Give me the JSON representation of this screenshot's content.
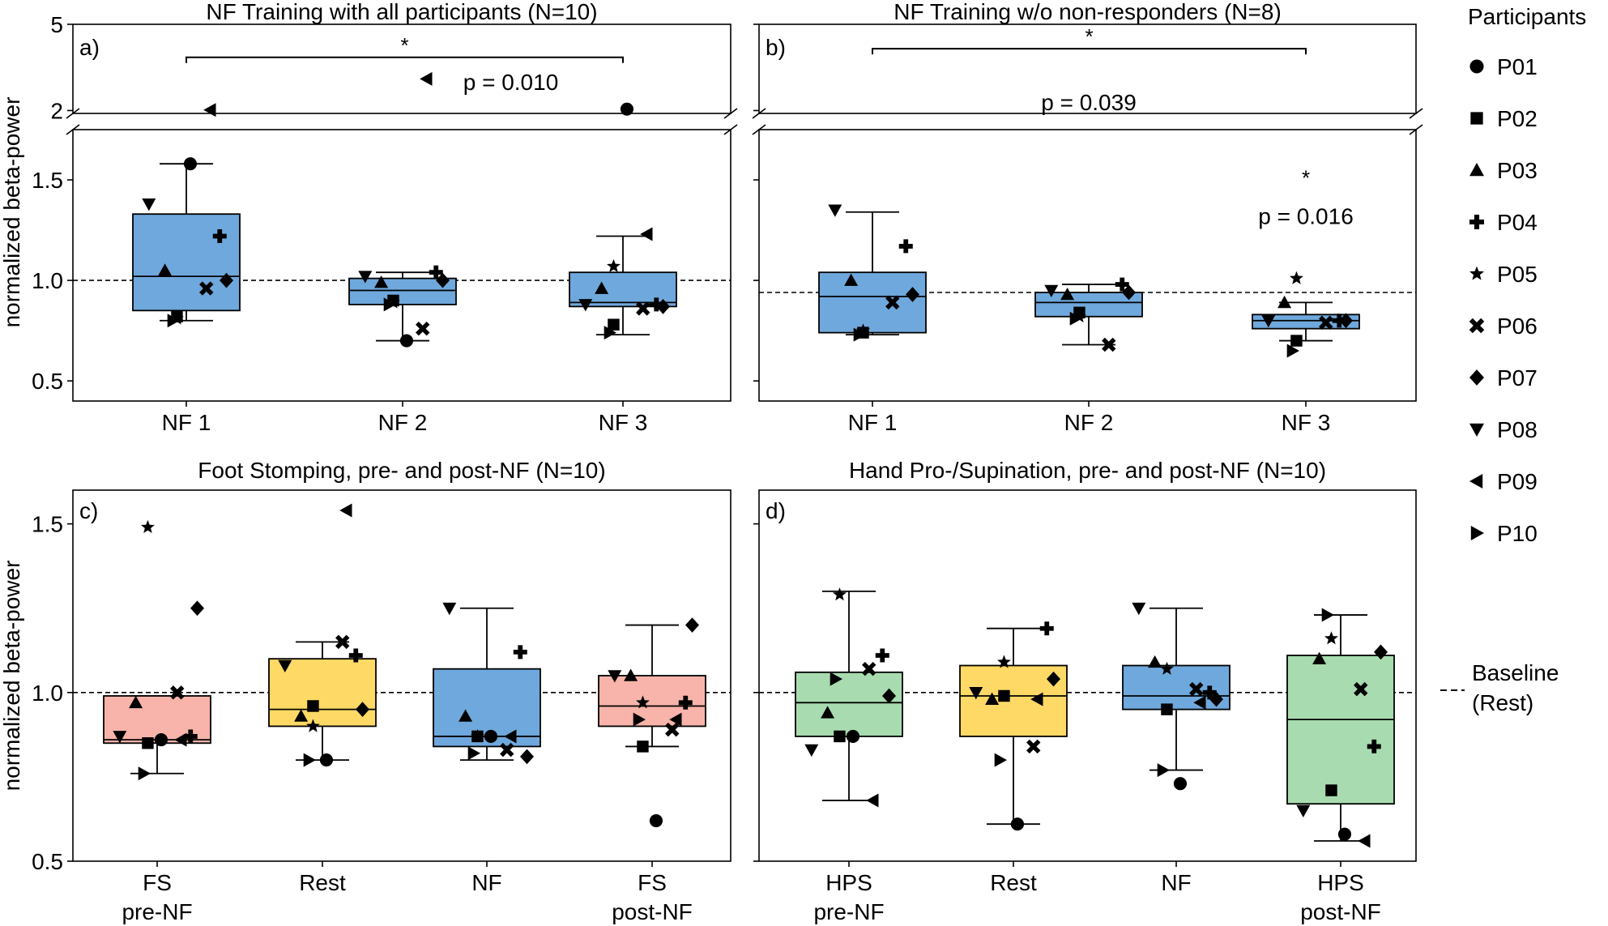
{
  "legend": {
    "title": "Participants",
    "items": [
      {
        "id": "P01",
        "label": "P01",
        "marker": "circle"
      },
      {
        "id": "P02",
        "label": "P02",
        "marker": "square"
      },
      {
        "id": "P03",
        "label": "P03",
        "marker": "triangle-up"
      },
      {
        "id": "P04",
        "label": "P04",
        "marker": "plus"
      },
      {
        "id": "P05",
        "label": "P05",
        "marker": "star"
      },
      {
        "id": "P06",
        "label": "P06",
        "marker": "x"
      },
      {
        "id": "P07",
        "label": "P07",
        "marker": "diamond"
      },
      {
        "id": "P08",
        "label": "P08",
        "marker": "triangle-down"
      },
      {
        "id": "P09",
        "label": "P09",
        "marker": "triangle-left"
      },
      {
        "id": "P10",
        "label": "P10",
        "marker": "triangle-right"
      }
    ],
    "baseline_label_line1": "Baseline",
    "baseline_label_line2": "(Rest)"
  },
  "colors": {
    "blue": "#6fa8dc",
    "red": "#f8b4aa",
    "yellow": "#ffd966",
    "green": "#a8dcb0"
  },
  "chart_data": [
    {
      "id": "a",
      "type": "box",
      "panel_label": "a)",
      "title": "NF Training with all participants (N=10)",
      "ylabel": "normalized beta-power",
      "ylim_lower": [
        0.4,
        1.75
      ],
      "ylim_upper": [
        1.9,
        5
      ],
      "yticks_lower": [
        "0.5",
        "1.0",
        "1.5"
      ],
      "yticks_upper": [
        "2",
        "5"
      ],
      "baseline": 1.0,
      "categories": [
        {
          "label": [
            "NF 1"
          ],
          "color": "blue",
          "box": {
            "q1": 0.85,
            "median": 1.02,
            "q3": 1.33,
            "whisker_low": 0.8,
            "whisker_high": 1.58
          },
          "points": {
            "P01": 1.58,
            "P02": 0.82,
            "P03": 1.05,
            "P04": 1.22,
            "P05": 0.81,
            "P06": 0.96,
            "P07": 1.0,
            "P08": 1.38,
            "P09": 2.02,
            "P10": 0.8
          }
        },
        {
          "label": [
            "NF 2"
          ],
          "color": "blue",
          "box": {
            "q1": 0.88,
            "median": 0.95,
            "q3": 1.01,
            "whisker_low": 0.7,
            "whisker_high": 1.04
          },
          "points": {
            "P01": 0.7,
            "P02": 0.9,
            "P03": 0.99,
            "P04": 1.04,
            "P05": 0.89,
            "P06": 0.76,
            "P07": 1.0,
            "P08": 1.02,
            "P09": 3.1,
            "P10": 0.88
          }
        },
        {
          "label": [
            "NF 3"
          ],
          "color": "blue",
          "box": {
            "q1": 0.87,
            "median": 0.89,
            "q3": 1.04,
            "whisker_low": 0.73,
            "whisker_high": 1.22
          },
          "points": {
            "P01": 2.05,
            "P02": 0.78,
            "P03": 0.96,
            "P04": 0.88,
            "P05": 1.07,
            "P06": 0.86,
            "P07": 0.87,
            "P08": 0.88,
            "P09": 1.23,
            "P10": 0.74
          }
        }
      ],
      "annotations": [
        {
          "type": "bracket",
          "from": 0,
          "to": 2,
          "y": 3.85,
          "star": "*",
          "text": "p = 0.010",
          "text_y": 3.0,
          "text_x": 1.5
        }
      ]
    },
    {
      "id": "b",
      "type": "box",
      "panel_label": "b)",
      "title": "NF Training w/o non-responders (N=8)",
      "ylim_lower": [
        0.4,
        1.75
      ],
      "ylim_upper": [
        1.9,
        5
      ],
      "baseline": 0.94,
      "categories": [
        {
          "label": [
            "NF 1"
          ],
          "color": "blue",
          "box": {
            "q1": 0.74,
            "median": 0.92,
            "q3": 1.04,
            "whisker_low": 0.73,
            "whisker_high": 1.34
          },
          "points": {
            "P02": 0.74,
            "P03": 1.0,
            "P04": 1.17,
            "P05": 0.75,
            "P06": 0.89,
            "P07": 0.93,
            "P08": 1.35,
            "P10": 0.73
          }
        },
        {
          "label": [
            "NF 2"
          ],
          "color": "blue",
          "box": {
            "q1": 0.82,
            "median": 0.89,
            "q3": 0.94,
            "whisker_low": 0.68,
            "whisker_high": 0.98
          },
          "points": {
            "P02": 0.84,
            "P03": 0.93,
            "P04": 0.98,
            "P05": 0.82,
            "P06": 0.68,
            "P07": 0.94,
            "P08": 0.95,
            "P10": 0.81
          }
        },
        {
          "label": [
            "NF 3"
          ],
          "color": "blue",
          "box": {
            "q1": 0.76,
            "median": 0.8,
            "q3": 0.83,
            "whisker_low": 0.7,
            "whisker_high": 0.89
          },
          "points": {
            "P02": 0.7,
            "P03": 0.89,
            "P04": 0.8,
            "P05": 1.01,
            "P06": 0.79,
            "P07": 0.8,
            "P08": 0.8,
            "P10": 0.65
          }
        }
      ],
      "annotations": [
        {
          "type": "bracket",
          "from": 0,
          "to": 2,
          "y": 4.15,
          "star": "*",
          "text": "p = 0.039",
          "text_y": 2.3,
          "text_x": 1.0
        },
        {
          "type": "label",
          "at": 2,
          "star": "*",
          "star_y": 1.53,
          "text": "p = 0.016",
          "text_y": 1.32
        }
      ]
    },
    {
      "id": "c",
      "type": "box",
      "panel_label": "c)",
      "title": "Foot Stomping, pre- and post-NF (N=10)",
      "ylabel": "normalized beta-power",
      "ylim": [
        0.5,
        1.6
      ],
      "yticks": [
        "0.5",
        "1.0",
        "1.5"
      ],
      "baseline": 1.0,
      "categories": [
        {
          "label": [
            "FS",
            "pre-NF"
          ],
          "color": "red",
          "box": {
            "q1": 0.85,
            "median": 0.86,
            "q3": 0.99,
            "whisker_low": 0.76,
            "whisker_high": 0.99
          },
          "points": {
            "P01": 0.86,
            "P02": 0.85,
            "P03": 0.97,
            "P04": 0.87,
            "P05": 1.49,
            "P06": 1.0,
            "P07": 1.25,
            "P08": 0.87,
            "P09": 0.86,
            "P10": 0.76
          }
        },
        {
          "label": [
            "Rest"
          ],
          "color": "yellow",
          "box": {
            "q1": 0.9,
            "median": 0.95,
            "q3": 1.1,
            "whisker_low": 0.8,
            "whisker_high": 1.15
          },
          "points": {
            "P01": 0.8,
            "P02": 0.96,
            "P03": 0.93,
            "P04": 1.11,
            "P05": 0.9,
            "P06": 1.15,
            "P07": 0.95,
            "P08": 1.08,
            "P09": 1.54,
            "P10": 0.8
          }
        },
        {
          "label": [
            "NF"
          ],
          "color": "blue",
          "box": {
            "q1": 0.84,
            "median": 0.87,
            "q3": 1.07,
            "whisker_low": 0.8,
            "whisker_high": 1.25
          },
          "points": {
            "P01": 0.87,
            "P02": 0.87,
            "P03": 0.93,
            "P04": 1.12,
            "P05": 0.87,
            "P06": 0.83,
            "P07": 0.81,
            "P08": 1.25,
            "P09": 0.87,
            "P10": 0.82
          }
        },
        {
          "label": [
            "FS",
            "post-NF"
          ],
          "color": "red",
          "box": {
            "q1": 0.9,
            "median": 0.96,
            "q3": 1.05,
            "whisker_low": 0.84,
            "whisker_high": 1.2
          },
          "points": {
            "P01": 0.62,
            "P02": 0.84,
            "P03": 1.05,
            "P04": 0.97,
            "P05": 0.97,
            "P06": 0.89,
            "P07": 1.2,
            "P08": 1.05,
            "P09": 0.92,
            "P10": 0.92
          }
        }
      ]
    },
    {
      "id": "d",
      "type": "box",
      "panel_label": "d)",
      "title": "Hand Pro-/Supination, pre- and post-NF (N=10)",
      "ylim": [
        0.5,
        1.6
      ],
      "baseline": 1.0,
      "categories": [
        {
          "label": [
            "HPS",
            "pre-NF"
          ],
          "color": "green",
          "box": {
            "q1": 0.87,
            "median": 0.97,
            "q3": 1.06,
            "whisker_low": 0.68,
            "whisker_high": 1.3
          },
          "points": {
            "P01": 0.87,
            "P02": 0.87,
            "P03": 0.94,
            "P04": 1.11,
            "P05": 1.29,
            "P06": 1.07,
            "P07": 0.99,
            "P08": 0.83,
            "P09": 0.68,
            "P10": 1.04
          }
        },
        {
          "label": [
            "Rest"
          ],
          "color": "yellow",
          "box": {
            "q1": 0.87,
            "median": 0.99,
            "q3": 1.08,
            "whisker_low": 0.61,
            "whisker_high": 1.19
          },
          "points": {
            "P01": 0.61,
            "P02": 0.99,
            "P03": 0.98,
            "P04": 1.19,
            "P05": 1.09,
            "P06": 0.84,
            "P07": 1.04,
            "P08": 1.0,
            "P09": 0.98,
            "P10": 0.8
          }
        },
        {
          "label": [
            "NF"
          ],
          "color": "blue",
          "box": {
            "q1": 0.95,
            "median": 0.99,
            "q3": 1.08,
            "whisker_low": 0.77,
            "whisker_high": 1.25
          },
          "points": {
            "P01": 0.73,
            "P02": 0.95,
            "P03": 1.09,
            "P04": 1.0,
            "P05": 1.07,
            "P06": 1.01,
            "P07": 0.98,
            "P08": 1.25,
            "P09": 0.97,
            "P10": 0.77
          }
        },
        {
          "label": [
            "HPS",
            "post-NF"
          ],
          "color": "green",
          "box": {
            "q1": 0.67,
            "median": 0.92,
            "q3": 1.11,
            "whisker_low": 0.56,
            "whisker_high": 1.23
          },
          "points": {
            "P01": 0.58,
            "P02": 0.71,
            "P03": 1.1,
            "P04": 0.84,
            "P05": 1.16,
            "P06": 1.01,
            "P07": 1.12,
            "P08": 0.65,
            "P09": 0.56,
            "P10": 1.23
          }
        }
      ]
    }
  ]
}
